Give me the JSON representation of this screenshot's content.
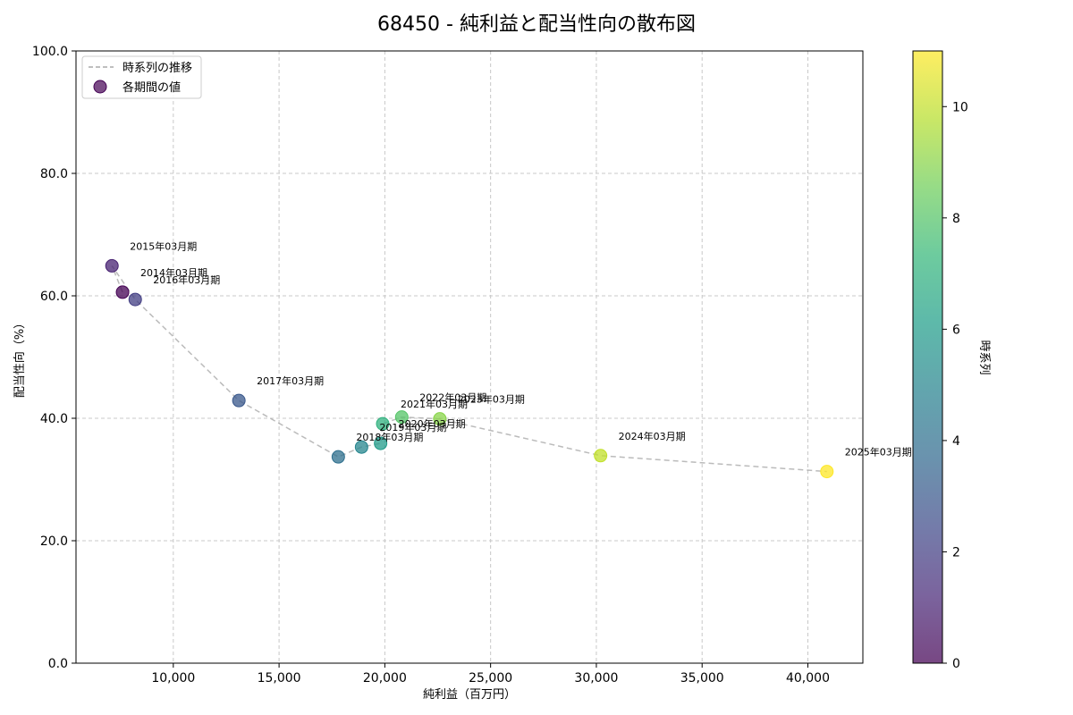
{
  "chart_data": {
    "type": "scatter",
    "title": "68450 - 純利益と配当性向の散布図",
    "xlabel": "純利益（百万円）",
    "ylabel": "配当性向（%）",
    "xlim": [
      5400,
      42600
    ],
    "ylim": [
      0,
      100
    ],
    "xticks": [
      10000,
      15000,
      20000,
      25000,
      30000,
      35000,
      40000
    ],
    "xtick_labels": [
      "10,000",
      "15,000",
      "20,000",
      "25,000",
      "30,000",
      "35,000",
      "40,000"
    ],
    "yticks": [
      0,
      20,
      40,
      60,
      80,
      100
    ],
    "ytick_labels": [
      "0.0",
      "20.0",
      "40.0",
      "60.0",
      "80.0",
      "100.0"
    ],
    "grid": true,
    "legend": {
      "placement": "top-left",
      "entries": [
        "時系列の推移",
        "各期間の値"
      ]
    },
    "colorbar": {
      "label": "時系列",
      "range": [
        0,
        11
      ],
      "ticks": [
        0,
        2,
        4,
        6,
        8,
        10
      ],
      "colormap": [
        "#440154",
        "#482878",
        "#3e4989",
        "#31688e",
        "#26828e",
        "#1f9e89",
        "#35b779",
        "#6ece58",
        "#b5de2b",
        "#fde725"
      ]
    },
    "points": [
      {
        "label": "2014年03月期",
        "x": 7600,
        "y": 60.6,
        "t": 0
      },
      {
        "label": "2015年03月期",
        "x": 7100,
        "y": 64.9,
        "t": 1
      },
      {
        "label": "2016年03月期",
        "x": 8200,
        "y": 59.4,
        "t": 2
      },
      {
        "label": "2017年03月期",
        "x": 13100,
        "y": 42.9,
        "t": 3
      },
      {
        "label": "2018年03月期",
        "x": 17800,
        "y": 33.7,
        "t": 4
      },
      {
        "label": "2019年03月期",
        "x": 18900,
        "y": 35.3,
        "t": 5
      },
      {
        "label": "2020年03月期",
        "x": 19800,
        "y": 35.9,
        "t": 6
      },
      {
        "label": "2021年03月期",
        "x": 19900,
        "y": 39.1,
        "t": 7
      },
      {
        "label": "2022年03月期",
        "x": 20800,
        "y": 40.2,
        "t": 8
      },
      {
        "label": "2023年03月期",
        "x": 22600,
        "y": 39.9,
        "t": 9
      },
      {
        "label": "2024年03月期",
        "x": 30200,
        "y": 33.9,
        "t": 10
      },
      {
        "label": "2025年03月期",
        "x": 40900,
        "y": 31.3,
        "t": 11
      }
    ]
  }
}
